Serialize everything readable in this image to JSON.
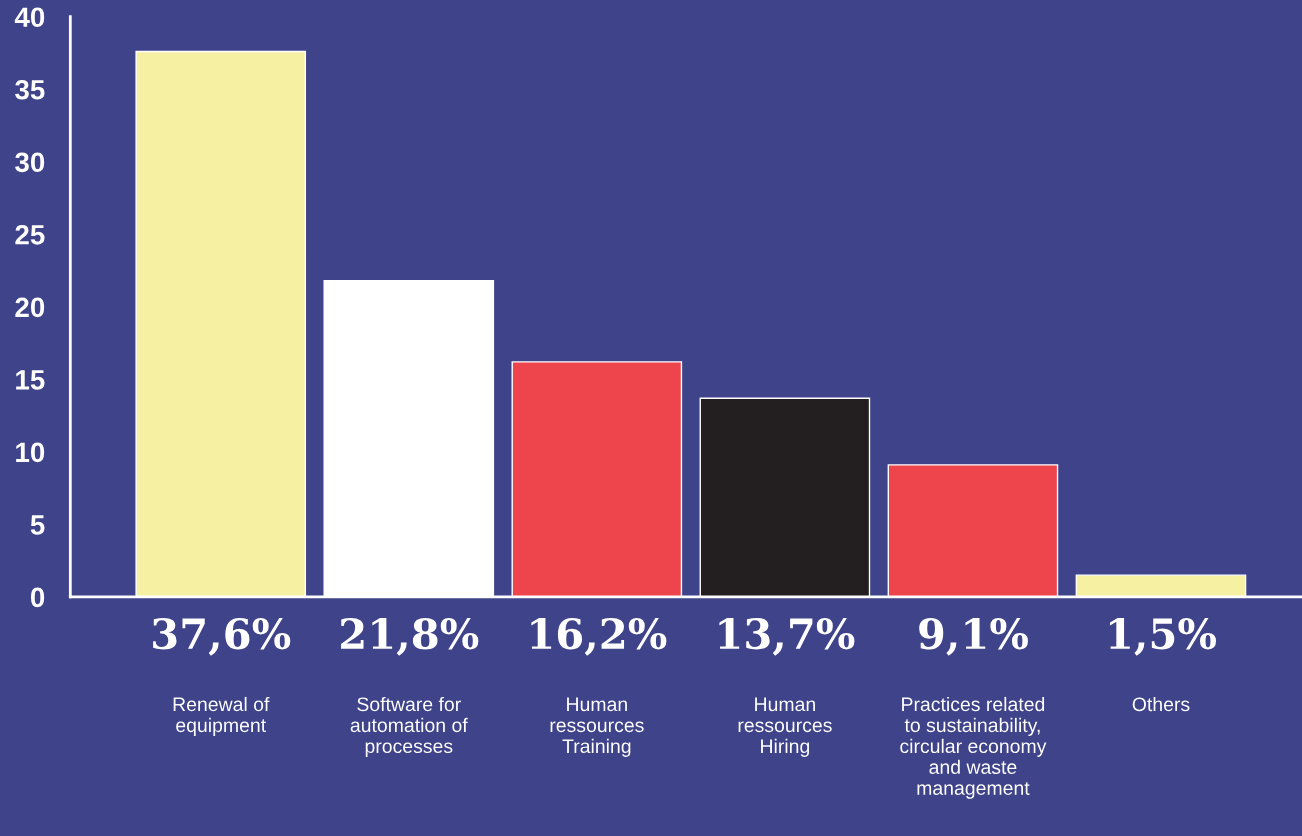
{
  "chart_data": {
    "type": "bar",
    "categories": [
      "Renewal of\nequipment",
      "Software for\nautomation of\nprocesses",
      "Human\nressources\nTraining",
      "Human\nressources\nHiring",
      "Practices related\nto sustainability,\ncircular economy\nand waste\nmanagement",
      "Others"
    ],
    "values": [
      37.6,
      21.8,
      16.2,
      13.7,
      9.1,
      1.5
    ],
    "colors": [
      "#f5f0a2",
      "#ffffff",
      "#ee454c",
      "#231f20",
      "#ee454c",
      "#f5f0a2"
    ],
    "value_labels": [
      "37,6%",
      "21,8%",
      "16,2%",
      "13,7%",
      "9,1%",
      "1,5%"
    ],
    "ylim": [
      0,
      40
    ],
    "yticks": [
      0,
      5,
      10,
      15,
      20,
      25,
      30,
      35,
      40
    ],
    "grid": false,
    "legend": false
  }
}
